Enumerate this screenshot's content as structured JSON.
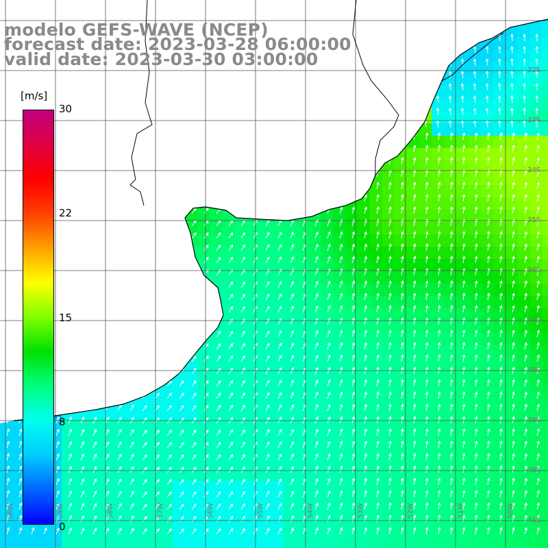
{
  "header": {
    "model": "modelo GEFS-WAVE (NCEP)",
    "forecast": "forecast date: 2023-03-28 06:00:00",
    "valid": "valid date: 2023-03-30 03:00:00"
  },
  "colorbar": {
    "units": "[m/s]",
    "ticks": [
      "30",
      "22",
      "15",
      "8",
      "0"
    ],
    "min": 0,
    "max": 30,
    "colors": [
      "#0000ff",
      "#0066ff",
      "#00ccff",
      "#00ffee",
      "#00ff80",
      "#00e000",
      "#80ff00",
      "#ffff00",
      "#ffa000",
      "#ff4000",
      "#ff0000",
      "#e00040",
      "#c00080"
    ]
  },
  "map": {
    "lon_labels": [
      "60W",
      "59W",
      "58W",
      "57W",
      "56W",
      "55W",
      "54W",
      "53W",
      "52W",
      "51W",
      "50W"
    ],
    "lat_labels": [
      "32S",
      "33S",
      "34S",
      "35S",
      "36S",
      "37S",
      "38S",
      "39S",
      "40S",
      "41S"
    ],
    "land_color": "#ffffff",
    "coast_color": "#000000",
    "grid_color": "#555555",
    "arrow_color": "#ffffff",
    "arrow_direction": "toward north-east"
  }
}
